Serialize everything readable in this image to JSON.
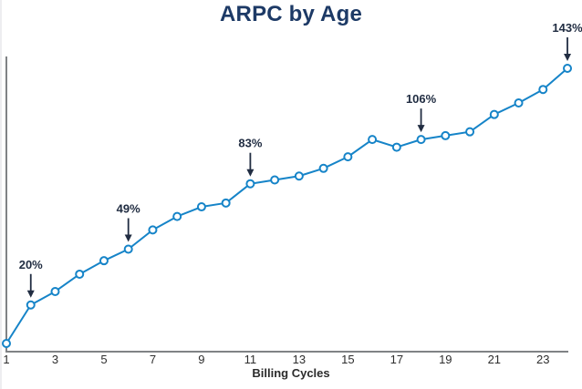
{
  "chart_data": {
    "type": "line",
    "title": "ARPC by Age",
    "xlabel": "Billing Cycles",
    "ylabel": "",
    "x": [
      1,
      2,
      3,
      4,
      5,
      6,
      7,
      8,
      9,
      10,
      11,
      12,
      13,
      14,
      15,
      16,
      17,
      18,
      19,
      20,
      21,
      22,
      23,
      24
    ],
    "series": [
      {
        "name": "ARPC",
        "values": [
          0,
          20,
          27,
          36,
          43,
          49,
          59,
          66,
          71,
          73,
          83,
          85,
          87,
          91,
          97,
          106,
          102,
          106,
          108,
          110,
          119,
          125,
          132,
          143
        ]
      }
    ],
    "unit": "%",
    "x_tick_labels": [
      "1",
      "3",
      "5",
      "7",
      "9",
      "11",
      "13",
      "15",
      "17",
      "19",
      "21",
      "23"
    ],
    "xlim": [
      1,
      24
    ],
    "ylim": [
      -4,
      149
    ],
    "grid": false,
    "legend": "none",
    "marker": "open-circle",
    "annotations": [
      {
        "label": "20%",
        "x": 2
      },
      {
        "label": "49%",
        "x": 6
      },
      {
        "label": "83%",
        "x": 11
      },
      {
        "label": "106%",
        "x": 18
      },
      {
        "label": "143%",
        "x": 24
      }
    ],
    "colors": {
      "line": "#1684c8",
      "marker_fill": "#ffffff",
      "title": "#1d3a66",
      "annotation": "#212d42",
      "axis": "#808285",
      "tick_label": "#2e2e2e",
      "axis_label": "#2b2b2b"
    }
  }
}
